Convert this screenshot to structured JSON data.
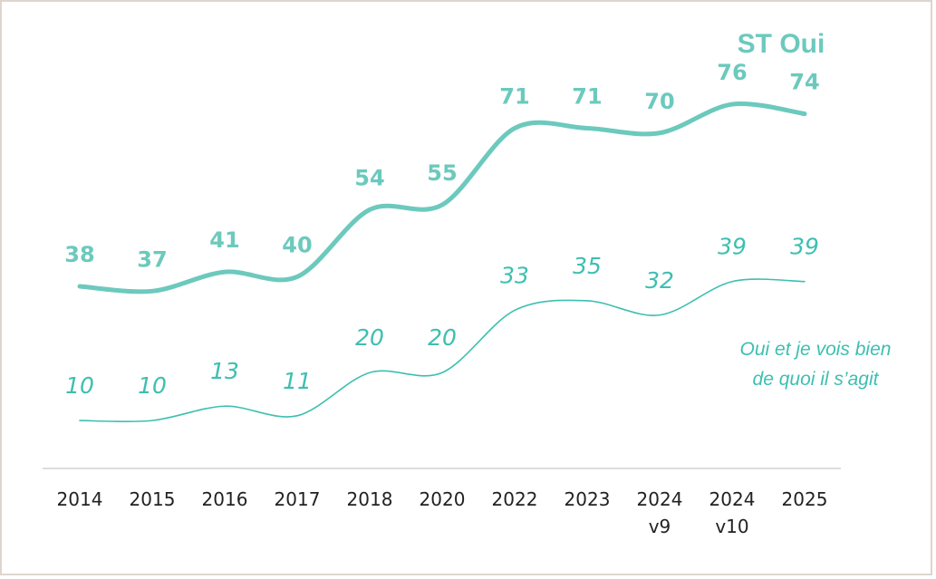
{
  "chart_data": {
    "type": "line",
    "categories": [
      "2014",
      "2015",
      "2016",
      "2017",
      "2018",
      "2020",
      "2022",
      "2023",
      "2024\nv9",
      "2024\nv10",
      "2025"
    ],
    "series": [
      {
        "name": "ST Oui",
        "color": "#6cc9bd",
        "values": [
          38,
          37,
          41,
          40,
          54,
          55,
          71,
          71,
          70,
          76,
          74
        ]
      },
      {
        "name": "Oui et je vois bien\nde quoi il s’agit",
        "color": "#3dbfb0",
        "values": [
          10,
          10,
          13,
          11,
          20,
          20,
          33,
          35,
          32,
          39,
          39
        ]
      }
    ],
    "ylim": [
      0,
      90
    ]
  }
}
